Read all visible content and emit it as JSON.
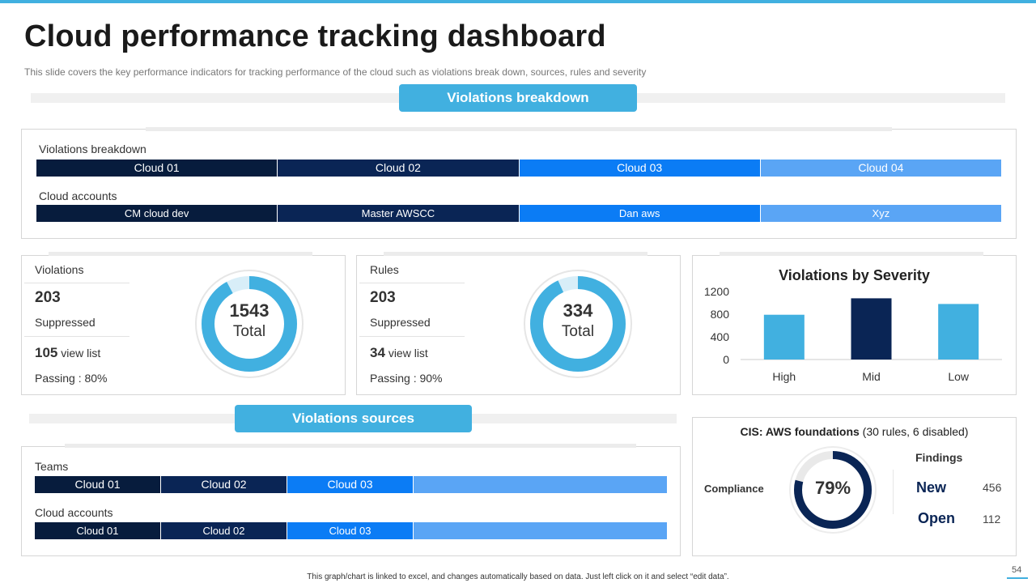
{
  "header": {
    "title": "Cloud performance tracking dashboard",
    "subtitle": "This slide covers the key performance indicators for tracking performance of the cloud such as violations break down, sources, rules and severity"
  },
  "breakdown_section": {
    "pill": "Violations breakdown",
    "row1_label": "Violations breakdown",
    "row1": [
      "Cloud 01",
      "Cloud 02",
      "Cloud 03",
      "Cloud 04"
    ],
    "row2_label": "Cloud accounts",
    "row2": [
      "CM cloud dev",
      "Master AWSCC",
      "Dan aws",
      "Xyz"
    ]
  },
  "violations_card": {
    "title": "Violations",
    "suppressed_value": "203",
    "suppressed_label": "Suppressed",
    "view_value": "105",
    "view_label": "view list",
    "passing": "Passing : 80%",
    "donut_value": "1543",
    "donut_label": "Total",
    "fill_fraction": 0.92
  },
  "rules_card": {
    "title": "Rules",
    "suppressed_value": "203",
    "suppressed_label": "Suppressed",
    "view_value": "34",
    "view_label": "view list",
    "passing": "Passing : 90%",
    "donut_value": "334",
    "donut_label": "Total",
    "fill_fraction": 0.93
  },
  "sources_section": {
    "pill": "Violations sources",
    "row1_label": "Teams",
    "row1": [
      "Cloud 01",
      "Cloud 02",
      "Cloud 03",
      ""
    ],
    "row2_label": "Cloud accounts",
    "row2": [
      "Cloud 01",
      "Cloud 02",
      "Cloud 03",
      ""
    ]
  },
  "cis_card": {
    "title_bold": "CIS: AWS foundations",
    "title_rest": " (30 rules, 6 disabled)",
    "compliance_label": "Compliance",
    "compliance_value": "79%",
    "compliance_fraction": 0.79,
    "findings_label": "Findings",
    "new_label": "New",
    "new_value": "456",
    "open_label": "Open",
    "open_value": "112"
  },
  "colors": {
    "accent": "#41b0e0",
    "navy": "#0a2555",
    "blue": "#0b7cf5",
    "light_blue": "#5aa5f5"
  },
  "chart_data": {
    "type": "bar",
    "title": "Violations  by Severity",
    "categories": [
      "High",
      "Mid",
      "Low"
    ],
    "values": [
      790,
      1080,
      980
    ],
    "bar_colors": [
      "#41b0e0",
      "#0a2555",
      "#41b0e0"
    ],
    "ylim": [
      0,
      1200
    ],
    "yticks": [
      0,
      400,
      800,
      1200
    ],
    "ytick_labels": [
      "0",
      "400",
      "800",
      "1200"
    ],
    "xlabel": "",
    "ylabel": "",
    "grid": false
  },
  "footer": {
    "note": "This graph/chart is linked to excel, and changes automatically based on data. Just left click on it and select “edit data”.",
    "page": "54"
  }
}
